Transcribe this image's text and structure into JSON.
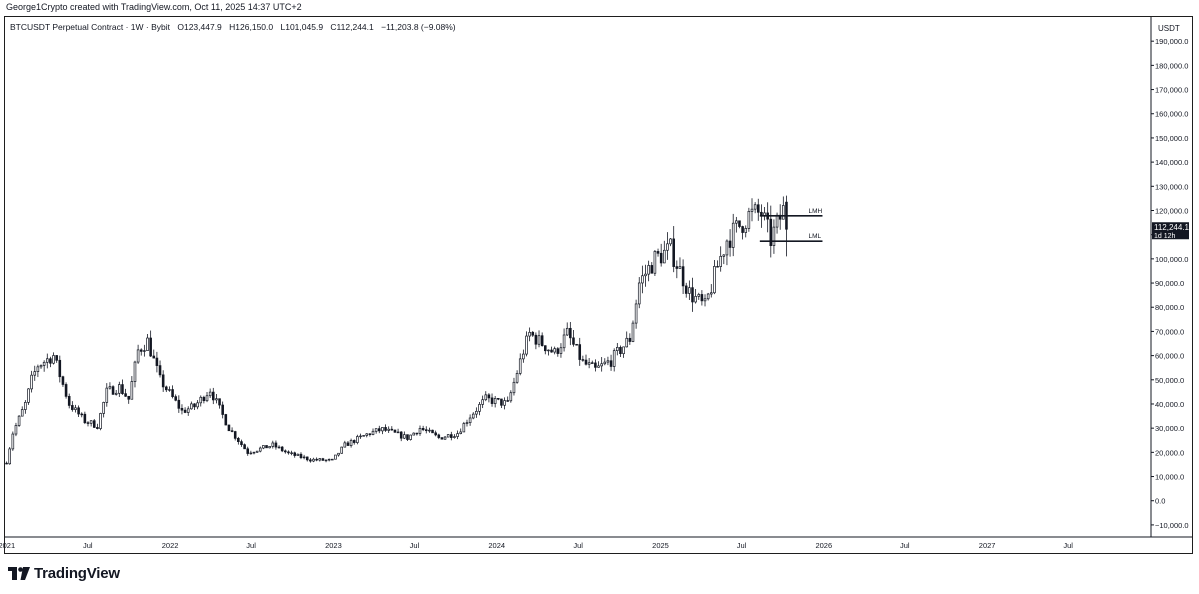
{
  "header": {
    "credit": "George1Crypto created with TradingView.com, Oct 11, 2025 14:37 UTC+2"
  },
  "legend": {
    "title": "BTCUSDT Perpetual Contract · 1W · Bybit",
    "open": "O123,447.9",
    "high": "H126,150.0",
    "low": "L101,045.9",
    "close": "C112,244.1",
    "change": "−11,203.8 (−9.08%)"
  },
  "footer": {
    "brand": "TradingView"
  },
  "colors": {
    "candle": "#131722",
    "axis": "#131722",
    "badge_bg": "#131722",
    "badge_text": "#ffffff"
  },
  "chart_data": {
    "type": "candlestick",
    "currency_label": "USDT",
    "y_ticks": [
      "190,000.0",
      "180,000.0",
      "170,000.0",
      "160,000.0",
      "150,000.0",
      "140,000.0",
      "130,000.0",
      "120,000.0",
      "110,000.0",
      "100,000.0",
      "90,000.0",
      "80,000.0",
      "70,000.0",
      "60,000.0",
      "50,000.0",
      "40,000.0",
      "30,000.0",
      "20,000.0",
      "10,000.0",
      "0.0",
      "−10,000.0"
    ],
    "y_tick_values": [
      190000,
      180000,
      170000,
      160000,
      150000,
      140000,
      130000,
      120000,
      110000,
      100000,
      90000,
      80000,
      70000,
      60000,
      50000,
      40000,
      30000,
      20000,
      10000,
      0,
      -10000
    ],
    "ylim": [
      -15000,
      200000
    ],
    "x_range": [
      "2020-12-28",
      "2027-12-31"
    ],
    "x_ticks": [
      {
        "label": "2021",
        "date": "2021-01-01"
      },
      {
        "label": "Jul",
        "date": "2021-07-01"
      },
      {
        "label": "2022",
        "date": "2022-01-01"
      },
      {
        "label": "Jul",
        "date": "2022-07-01"
      },
      {
        "label": "2023",
        "date": "2023-01-01"
      },
      {
        "label": "Jul",
        "date": "2023-07-01"
      },
      {
        "label": "2024",
        "date": "2024-01-01"
      },
      {
        "label": "Jul",
        "date": "2024-07-01"
      },
      {
        "label": "2025",
        "date": "2025-01-01"
      },
      {
        "label": "Jul",
        "date": "2025-07-01"
      },
      {
        "label": "2026",
        "date": "2026-01-01"
      },
      {
        "label": "Jul",
        "date": "2026-07-01"
      },
      {
        "label": "2027",
        "date": "2027-01-01"
      },
      {
        "label": "Jul",
        "date": "2027-07-01"
      }
    ],
    "candles_start": "2020-12-28",
    "candle_interval_days": 7,
    "anchors": [
      [
        "2020-12-28",
        16000
      ],
      [
        "2021-01-11",
        28000
      ],
      [
        "2021-02-08",
        40000
      ],
      [
        "2021-02-22",
        50000
      ],
      [
        "2021-03-08",
        56000
      ],
      [
        "2021-04-12",
        60000
      ],
      [
        "2021-05-17",
        40000
      ],
      [
        "2021-06-21",
        33000
      ],
      [
        "2021-07-19",
        31000
      ],
      [
        "2021-08-09",
        45000
      ],
      [
        "2021-09-06",
        47000
      ],
      [
        "2021-09-27",
        42000
      ],
      [
        "2021-10-18",
        62000
      ],
      [
        "2021-11-08",
        66000
      ],
      [
        "2021-12-06",
        50000
      ],
      [
        "2022-01-24",
        37000
      ],
      [
        "2022-02-21",
        39000
      ],
      [
        "2022-03-28",
        46000
      ],
      [
        "2022-05-09",
        30000
      ],
      [
        "2022-06-20",
        20000
      ],
      [
        "2022-08-15",
        23000
      ],
      [
        "2022-09-19",
        19500
      ],
      [
        "2022-11-07",
        17000
      ],
      [
        "2022-12-26",
        16600
      ],
      [
        "2023-01-23",
        23000
      ],
      [
        "2023-03-20",
        28000
      ],
      [
        "2023-04-17",
        29500
      ],
      [
        "2023-06-12",
        26000
      ],
      [
        "2023-07-10",
        30000
      ],
      [
        "2023-08-21",
        26000
      ],
      [
        "2023-10-02",
        28000
      ],
      [
        "2023-10-30",
        35000
      ],
      [
        "2023-12-04",
        42000
      ],
      [
        "2024-01-22",
        40000
      ],
      [
        "2024-02-26",
        62000
      ],
      [
        "2024-03-11",
        69000
      ],
      [
        "2024-05-06",
        61000
      ],
      [
        "2024-06-03",
        69000
      ],
      [
        "2024-07-08",
        57000
      ],
      [
        "2024-08-05",
        54000
      ],
      [
        "2024-09-09",
        58000
      ],
      [
        "2024-10-21",
        67000
      ],
      [
        "2024-11-11",
        90000
      ],
      [
        "2024-12-16",
        100000
      ],
      [
        "2025-01-20",
        104000
      ],
      [
        "2025-03-03",
        86000
      ],
      [
        "2025-04-07",
        80000
      ],
      [
        "2025-05-05",
        97000
      ],
      [
        "2025-05-26",
        108000
      ],
      [
        "2025-07-14",
        118000
      ],
      [
        "2025-08-11",
        119000
      ],
      [
        "2025-09-01",
        108000
      ],
      [
        "2025-09-29",
        120000
      ],
      [
        "2025-10-06",
        112244
      ]
    ],
    "last_candle": {
      "date": "2025-10-06",
      "open": 123447.9,
      "high": 126150.0,
      "low": 101045.9,
      "close": 112244.1
    },
    "levels": [
      {
        "name": "LMH",
        "value": 117800,
        "from": "2025-08-11",
        "to": "2025-12-29"
      },
      {
        "name": "LML",
        "value": 107300,
        "from": "2025-08-11",
        "to": "2025-12-29"
      }
    ],
    "price_badge": {
      "value": "112,244.1",
      "countdown": "1d 12h"
    }
  }
}
